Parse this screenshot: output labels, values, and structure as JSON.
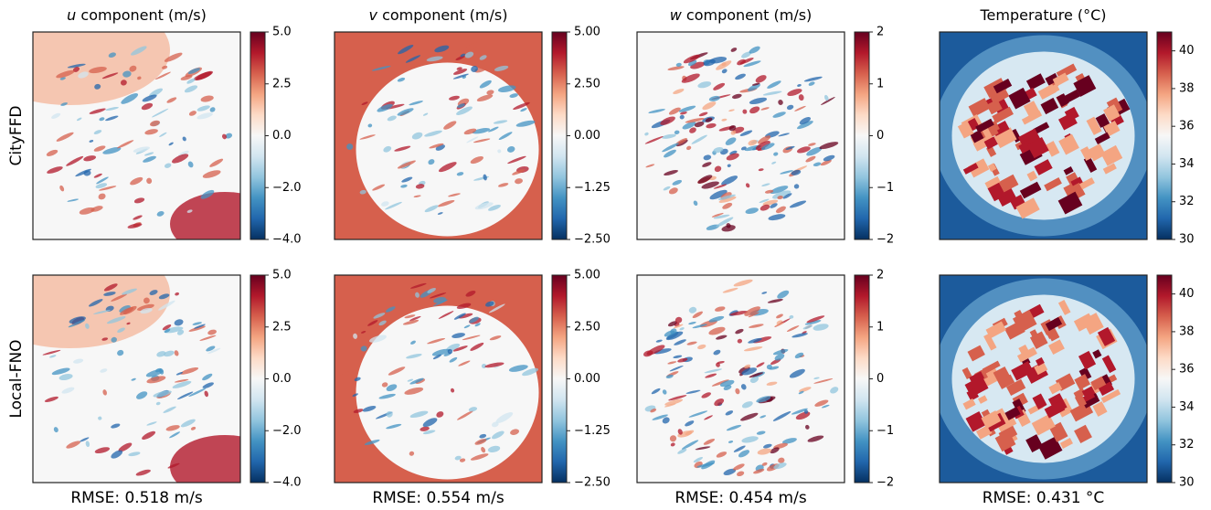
{
  "figure": {
    "row_labels": [
      "CityFFD",
      "Local-FNO"
    ],
    "colormap": "RdBu_r",
    "columns": [
      {
        "symbol": "u",
        "title": "component (m/s)",
        "lim": [
          -4,
          5
        ],
        "vcenter": 0,
        "ticks": [
          {
            "value": 5,
            "label": "5.0"
          },
          {
            "value": 2.5,
            "label": "2.5"
          },
          {
            "value": 0,
            "label": "0.0"
          },
          {
            "value": -2,
            "label": "−2.0"
          },
          {
            "value": -4,
            "label": "−4.0"
          }
        ],
        "rmse": "RMSE: 0.518 m/s"
      },
      {
        "symbol": "v",
        "title": "component (m/s)",
        "lim": [
          -2.5,
          5
        ],
        "vcenter": 0,
        "ticks": [
          {
            "value": 5,
            "label": "5.00"
          },
          {
            "value": 2.5,
            "label": "2.50"
          },
          {
            "value": 0,
            "label": "0.00"
          },
          {
            "value": -1.25,
            "label": "−1.25"
          },
          {
            "value": -2.5,
            "label": "−2.50"
          }
        ],
        "rmse": "RMSE: 0.554 m/s"
      },
      {
        "symbol": "w",
        "title": "component (m/s)",
        "lim": [
          -2,
          2
        ],
        "vcenter": 0,
        "ticks": [
          2,
          1,
          0,
          {
            "value": -1,
            "label": "−1"
          },
          {
            "value": -2,
            "label": "−2"
          }
        ],
        "rmse": "RMSE: 0.454 m/s"
      },
      {
        "title": "Temperature (°C)",
        "lim": [
          30,
          41
        ],
        "ticks": [
          40,
          38,
          36,
          34,
          32,
          30
        ],
        "rmse": "RMSE: 0.431 °C"
      }
    ]
  }
}
